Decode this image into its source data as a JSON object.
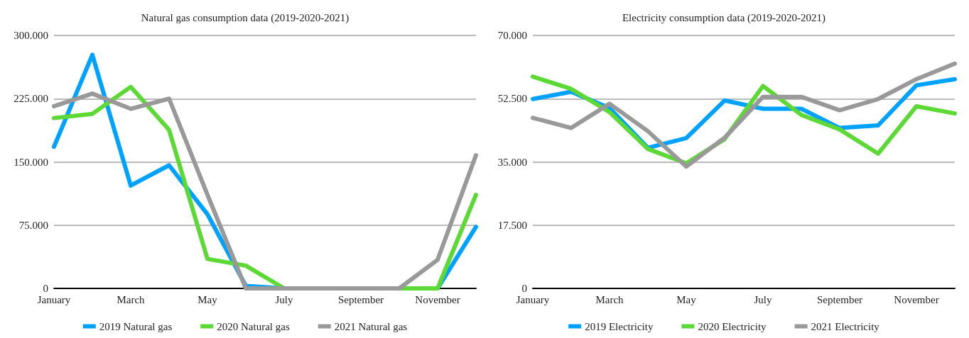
{
  "chart_data": [
    {
      "type": "line",
      "title": "Natural gas consumption data (2019-2020-2021)",
      "categories": [
        "January",
        null,
        "March",
        null,
        "May",
        null,
        "July",
        null,
        "September",
        null,
        "November",
        null
      ],
      "series": [
        {
          "name": "2019 Natural gas",
          "color": "#00a2ff",
          "values": [
            168000,
            277000,
            122000,
            146000,
            88000,
            3000,
            0,
            0,
            0,
            0,
            0,
            73000
          ]
        },
        {
          "name": "2020 Natural gas",
          "color": "#5dd936",
          "values": [
            202000,
            207000,
            239000,
            188000,
            35000,
            27000,
            0,
            0,
            0,
            0,
            0,
            111000
          ]
        },
        {
          "name": "2021 Natural gas",
          "color": "#999999",
          "values": [
            216000,
            231000,
            213000,
            225000,
            111000,
            0,
            0,
            0,
            0,
            0,
            34000,
            158000
          ]
        }
      ],
      "ylim": [
        0,
        300000
      ],
      "yticks": [
        0,
        {
          "value": 75000,
          "label": "75.000"
        },
        {
          "value": 150000,
          "label": "150.000"
        },
        {
          "value": 225000,
          "label": "225.000"
        },
        {
          "value": 300000,
          "label": "300.000"
        }
      ],
      "grid": "y",
      "legend": "bottom",
      "marker": "none",
      "line_style": "solid"
    },
    {
      "type": "line",
      "title": "Electricity consumption data (2019-2020-2021)",
      "categories": [
        "January",
        null,
        "March",
        null,
        "May",
        null,
        "July",
        null,
        "September",
        null,
        "November",
        null
      ],
      "series": [
        {
          "name": "2019 Electricity",
          "color": "#00a2ff",
          "values": [
            52400,
            54400,
            49900,
            38900,
            41600,
            52000,
            49700,
            49700,
            44400,
            45100,
            56200,
            57900
          ]
        },
        {
          "name": "2020 Electricity",
          "color": "#5dd936",
          "values": [
            58600,
            55200,
            48800,
            38600,
            34600,
            41300,
            56000,
            48000,
            44000,
            37300,
            50400,
            48400
          ]
        },
        {
          "name": "2021 Electricity",
          "color": "#999999",
          "values": [
            47200,
            44400,
            51100,
            43500,
            33700,
            41700,
            53000,
            53000,
            49300,
            52400,
            57900,
            62200
          ]
        }
      ],
      "ylim": [
        0,
        70000
      ],
      "yticks": [
        0,
        {
          "value": 17500,
          "label": "17.500"
        },
        {
          "value": 35000,
          "label": "35.000"
        },
        {
          "value": 52500,
          "label": "52.500"
        },
        {
          "value": 70000,
          "label": "70.000"
        }
      ],
      "grid": "y",
      "legend": "bottom",
      "marker": "none",
      "line_style": "solid"
    }
  ]
}
